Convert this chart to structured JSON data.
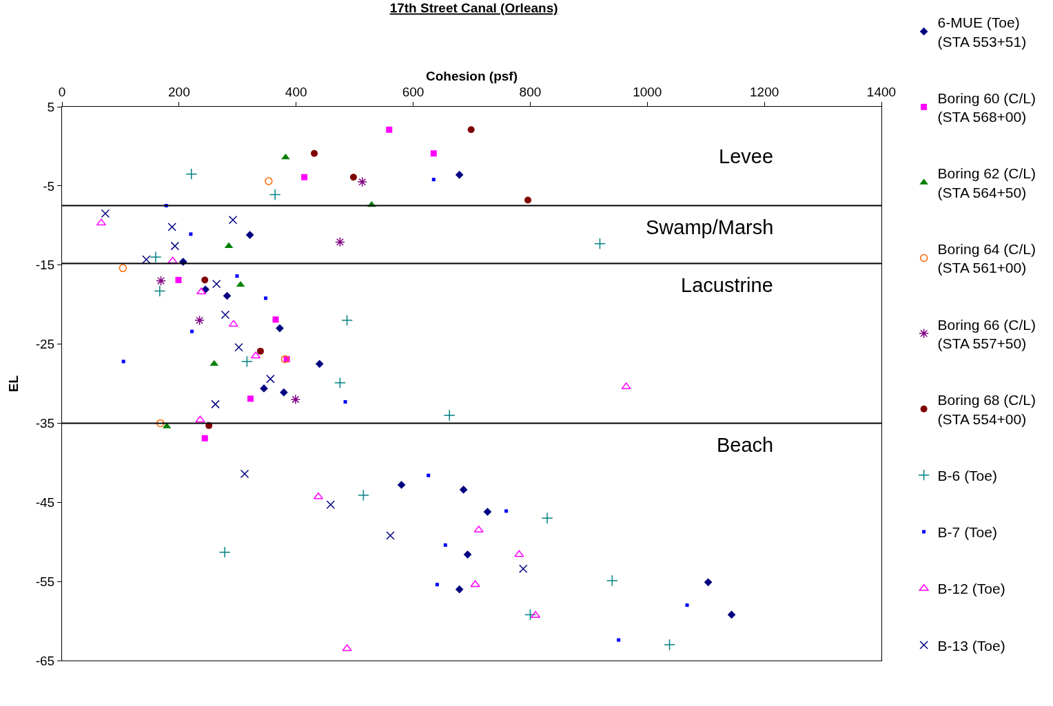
{
  "chart_data": {
    "type": "scatter",
    "title": "17th Street Canal (Orleans)",
    "xlabel": "Cohesion (psf)",
    "ylabel": "EL",
    "xlim": [
      0,
      1400
    ],
    "xticks": [
      0,
      200,
      400,
      600,
      800,
      1000,
      1200,
      1400
    ],
    "ylim": [
      -65,
      5
    ],
    "yticks": [
      5,
      -5,
      -15,
      -25,
      -35,
      -45,
      -55,
      -65
    ],
    "grid": false,
    "legend": "right",
    "series": [
      {
        "name": "6-MUE (Toe)\n(STA 553+51)",
        "color": "#000080",
        "marker": "diamond",
        "x": [
          679,
          321,
          207,
          245,
          282,
          372,
          440,
          345,
          379,
          580,
          686,
          727,
          693,
          679,
          1104,
          1144
        ],
        "values": [
          -3.6,
          -11.2,
          -14.6,
          -18.1,
          -18.9,
          -23.0,
          -27.5,
          -30.6,
          -31.1,
          -42.8,
          -43.4,
          -46.2,
          -51.6,
          -56.0,
          -55.1,
          -59.2
        ]
      },
      {
        "name": "Boring 60 (C/L)\n(STA 568+00)",
        "color": "#ff00ff",
        "marker": "square",
        "x": [
          559,
          635,
          414,
          199,
          365,
          384,
          322,
          244
        ],
        "values": [
          2.1,
          -0.9,
          -3.9,
          -16.9,
          -21.9,
          -26.9,
          -31.9,
          -36.9
        ]
      },
      {
        "name": "Boring 62 (C/L)\n(STA 564+50)",
        "color": "#008000",
        "marker": "triangle",
        "x": [
          382,
          529,
          285,
          305,
          260,
          179
        ],
        "values": [
          -1.4,
          -7.4,
          -12.6,
          -17.5,
          -27.5,
          -35.4
        ]
      },
      {
        "name": "Boring 64 (C/L)\n(STA 561+00)",
        "color": "#ff6600",
        "marker": "circle",
        "x": [
          353,
          104,
          381,
          168
        ],
        "values": [
          -4.4,
          -15.4,
          -26.9,
          -35.0
        ]
      },
      {
        "name": "Boring 66 (C/L)\n(STA 557+50)",
        "color": "#800080",
        "marker": "cross",
        "x": [
          513,
          475,
          169,
          235,
          399
        ],
        "values": [
          -4.5,
          -12.1,
          -17.0,
          -22.0,
          -32.0
        ]
      },
      {
        "name": "Boring 68 (C/L)\n(STA 554+00)",
        "color": "#800000",
        "marker": "circle",
        "x": [
          699,
          431,
          498,
          796,
          244,
          339,
          251
        ],
        "values": [
          2.1,
          -0.9,
          -3.9,
          -6.8,
          -16.9,
          -25.9,
          -35.3
        ]
      },
      {
        "name": "B-6 (Toe)",
        "color": "#008080",
        "marker": "cross",
        "x": [
          221,
          364,
          919,
          160,
          167,
          487,
          316,
          475,
          662,
          515,
          829,
          278,
          940,
          800,
          1038
        ],
        "values": [
          -3.5,
          -6.1,
          -12.3,
          -14.0,
          -18.3,
          -22.0,
          -27.2,
          -29.9,
          -34.0,
          -44.1,
          -47.0,
          -51.3,
          -54.9,
          -59.2,
          -63.0
        ]
      },
      {
        "name": "B-7 (Toe)",
        "color": "#0000ff",
        "marker": "square",
        "x": [
          178,
          220,
          299,
          348,
          222,
          105,
          635,
          484,
          626,
          759,
          655,
          641,
          1068,
          951
        ],
        "values": [
          -7.5,
          -11.1,
          -16.4,
          -19.2,
          -23.4,
          -27.2,
          -4.2,
          -32.3,
          -41.6,
          -46.1,
          -50.4,
          -55.4,
          -58.0,
          -62.4
        ]
      },
      {
        "name": "B-12 (Toe)",
        "color": "#ff00ff",
        "marker": "triangle",
        "x": [
          67,
          189,
          238,
          293,
          331,
          236,
          438,
          964,
          712,
          781,
          706,
          809,
          487
        ],
        "values": [
          -9.7,
          -14.5,
          -18.4,
          -22.5,
          -26.5,
          -34.6,
          -44.3,
          -30.4,
          -48.5,
          -51.6,
          -55.4,
          -59.3,
          -63.5
        ]
      },
      {
        "name": "B-13 (Toe)",
        "color": "#000080",
        "marker": "cross",
        "x": [
          74,
          188,
          292,
          193,
          144,
          264,
          279,
          302,
          356,
          262,
          312,
          459,
          561,
          788
        ],
        "values": [
          -8.5,
          -10.2,
          -9.3,
          -12.6,
          -14.3,
          -17.4,
          -21.3,
          -25.4,
          -29.4,
          -32.6,
          -41.4,
          -45.3,
          -49.2,
          -53.4
        ]
      }
    ],
    "ref_lines": [
      {
        "axis": "y",
        "value": -7.5,
        "color": "#000000"
      },
      {
        "axis": "y",
        "value": -14.8,
        "color": "#000000"
      },
      {
        "axis": "y",
        "value": -35,
        "color": "#000000"
      }
    ],
    "annotations": [
      "Levee",
      "Swamp/Marsh",
      "Lacustrine",
      "Beach"
    ]
  }
}
